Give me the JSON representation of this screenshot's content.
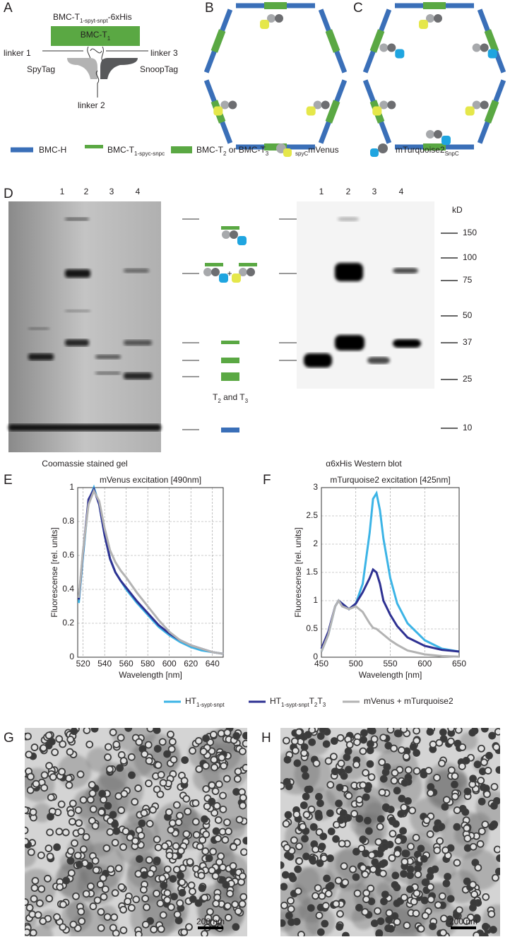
{
  "panel_labels": [
    "A",
    "B",
    "C",
    "D",
    "E",
    "F",
    "G",
    "H"
  ],
  "panel_a": {
    "construct": [
      {
        "text": "BMC-T"
      },
      {
        "text": "1-spyt-snpt",
        "sub": true
      },
      {
        "text": "-6xHis"
      }
    ],
    "domain": [
      {
        "text": "BMC-T"
      },
      {
        "text": "1",
        "sub": true
      }
    ],
    "linker_1": "linker 1",
    "linker_2": "linker 2",
    "linker_3": "linker 3",
    "spytag": "SpyTag",
    "snooptag": "SnoopTag"
  },
  "legend": [
    [
      {
        "text": "BMC-H"
      }
    ],
    [
      {
        "text": "BMC-T"
      },
      {
        "text": "1-spyc-snpc",
        "sub": true
      }
    ],
    [
      {
        "text": "BMC-T"
      },
      {
        "text": "2",
        "sub": true
      },
      {
        "text": " or BMC-T"
      },
      {
        "text": "3",
        "sub": true
      }
    ],
    [
      {
        "text": "spyC",
        "sub": true
      },
      {
        "text": "mVenus"
      }
    ],
    [
      {
        "text": "mTurquoise2"
      },
      {
        "text": "SnpC",
        "sub": true
      }
    ]
  ],
  "panel_d": {
    "gel_lanes": [
      "1",
      "2",
      "3",
      "4"
    ],
    "blot_lanes": [
      "1",
      "2",
      "3",
      "4"
    ],
    "marker_unit": "kD",
    "markers": [
      150,
      100,
      75,
      50,
      37,
      25,
      10
    ],
    "plus": "+",
    "t2_t3": [
      {
        "text": "T"
      },
      {
        "text": "2",
        "sub": true
      },
      {
        "text": " and T"
      },
      {
        "text": "3",
        "sub": true
      }
    ],
    "gel_caption": "Coomassie stained gel",
    "blot_caption": "α6xHis Western blot"
  },
  "scale_bars": [
    "200 nm",
    "200 nm"
  ],
  "chart_data": [
    {
      "type": "line",
      "title": "mVenus excitation [490nm]",
      "x_label": "Wavelength [nm]",
      "y_label": "Fluorescense [rel. units]",
      "xlim": [
        515,
        650
      ],
      "xticks": [
        520,
        540,
        560,
        580,
        600,
        620,
        640
      ],
      "ylim": [
        0,
        1
      ],
      "yticks": [
        0,
        0.2,
        0.4,
        0.6,
        0.8,
        1
      ],
      "grid": true,
      "x": [
        516,
        520,
        525,
        530,
        535,
        540,
        545,
        550,
        555,
        560,
        570,
        580,
        590,
        600,
        610,
        620,
        630,
        640,
        650
      ],
      "series": [
        {
          "name": [
            {
              "text": "HT"
            },
            {
              "text": "1-sypt-snpt",
              "sub": true
            }
          ],
          "color": "#3cb4e6",
          "values": [
            0.32,
            0.6,
            0.92,
            1.0,
            0.9,
            0.72,
            0.58,
            0.5,
            0.45,
            0.4,
            0.32,
            0.25,
            0.18,
            0.13,
            0.09,
            0.06,
            0.04,
            0.03,
            0.02
          ]
        },
        {
          "name": [
            {
              "text": "HT"
            },
            {
              "text": "1-sypt-snpt",
              "sub": true
            },
            {
              "text": "T"
            },
            {
              "text": "2",
              "sub": true
            },
            {
              "text": "T"
            },
            {
              "text": "3",
              "sub": true
            }
          ],
          "color": "#2e3192",
          "values": [
            0.34,
            0.62,
            0.93,
            0.99,
            0.9,
            0.72,
            0.58,
            0.5,
            0.45,
            0.41,
            0.33,
            0.26,
            0.19,
            0.14,
            0.1,
            0.07,
            0.05,
            0.03,
            0.02
          ]
        },
        {
          "name": [
            {
              "text": "mVenus + mTurquoise2"
            }
          ],
          "color": "#b3b3b3",
          "values": [
            0.35,
            0.63,
            0.9,
            0.98,
            0.92,
            0.76,
            0.63,
            0.56,
            0.51,
            0.47,
            0.38,
            0.3,
            0.22,
            0.15,
            0.1,
            0.07,
            0.05,
            0.03,
            0.02
          ]
        }
      ]
    },
    {
      "type": "line",
      "title": "mTurquoise2 excitation [425nm]",
      "x_label": "Wavelength [nm]",
      "y_label": "Fluorescense [rel. units]",
      "xlim": [
        450,
        650
      ],
      "xticks": [
        450,
        500,
        550,
        600,
        650
      ],
      "ylim": [
        0,
        3
      ],
      "yticks": [
        0,
        0.5,
        1,
        1.5,
        2,
        2.5,
        3
      ],
      "grid": true,
      "x": [
        450,
        460,
        470,
        475,
        480,
        490,
        500,
        510,
        520,
        525,
        530,
        535,
        540,
        550,
        560,
        575,
        600,
        625,
        650
      ],
      "series": [
        {
          "color": "#3cb4e6",
          "values": [
            0.1,
            0.4,
            0.9,
            1.0,
            0.95,
            0.85,
            0.95,
            1.3,
            2.2,
            2.8,
            2.9,
            2.6,
            2.1,
            1.4,
            0.95,
            0.6,
            0.3,
            0.15,
            0.1
          ]
        },
        {
          "color": "#2e3192",
          "values": [
            0.15,
            0.45,
            0.9,
            1.0,
            0.95,
            0.85,
            0.95,
            1.15,
            1.4,
            1.55,
            1.5,
            1.3,
            1.0,
            0.75,
            0.55,
            0.35,
            0.2,
            0.13,
            0.1
          ]
        },
        {
          "color": "#b3b3b3",
          "values": [
            0.1,
            0.4,
            0.9,
            1.0,
            0.9,
            0.85,
            0.9,
            0.8,
            0.6,
            0.52,
            0.5,
            0.45,
            0.4,
            0.3,
            0.22,
            0.12,
            0.05,
            0.02,
            0.01
          ]
        }
      ]
    }
  ]
}
